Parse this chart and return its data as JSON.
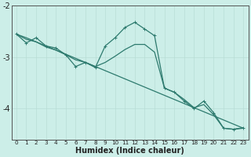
{
  "xlabel": "Humidex (Indice chaleur)",
  "bg_color": "#cceee8",
  "line_color": "#2d7a6e",
  "grid_color": "#b8ddd6",
  "x_data": [
    0,
    1,
    2,
    3,
    4,
    5,
    6,
    7,
    8,
    9,
    10,
    11,
    12,
    13,
    14,
    15,
    16,
    17,
    18,
    19,
    20,
    21,
    22,
    23
  ],
  "y_jagged": [
    -2.55,
    -2.72,
    -2.62,
    -2.78,
    -2.82,
    -2.95,
    -3.18,
    -3.1,
    -3.2,
    -2.78,
    -2.62,
    -2.42,
    -2.32,
    -2.45,
    -2.58,
    -3.6,
    -3.68,
    -3.85,
    -4.0,
    -3.85,
    -4.08,
    -4.38,
    -4.4,
    -4.38
  ],
  "y_trend": [
    -2.55,
    -2.62,
    -2.7,
    -2.78,
    -2.86,
    -2.94,
    -3.02,
    -3.1,
    -3.18,
    -3.26,
    -3.34,
    -3.42,
    -3.5,
    -3.58,
    -3.66,
    -3.74,
    -3.82,
    -3.9,
    -3.98,
    -4.06,
    -4.14,
    -4.22,
    -4.3,
    -4.38
  ],
  "y_smooth": [
    -2.55,
    -2.65,
    -2.7,
    -2.8,
    -2.86,
    -2.95,
    -3.05,
    -3.1,
    -3.18,
    -3.1,
    -2.98,
    -2.85,
    -2.75,
    -2.75,
    -2.9,
    -3.6,
    -3.68,
    -3.82,
    -3.98,
    -3.92,
    -4.12,
    -4.38,
    -4.4,
    -4.37
  ],
  "ylim": [
    -4.6,
    -2.1
  ],
  "xlim": [
    -0.5,
    23.5
  ],
  "yticks": [
    -4.0,
    -3.0,
    -2.0
  ],
  "ytick_labels": [
    "-4",
    "-3",
    "-2"
  ],
  "xticks": [
    0,
    1,
    2,
    3,
    4,
    5,
    6,
    7,
    8,
    9,
    10,
    11,
    12,
    13,
    14,
    15,
    16,
    17,
    18,
    19,
    20,
    21,
    22,
    23
  ],
  "marker": "+",
  "marker_size": 3.5,
  "line_width": 0.9
}
